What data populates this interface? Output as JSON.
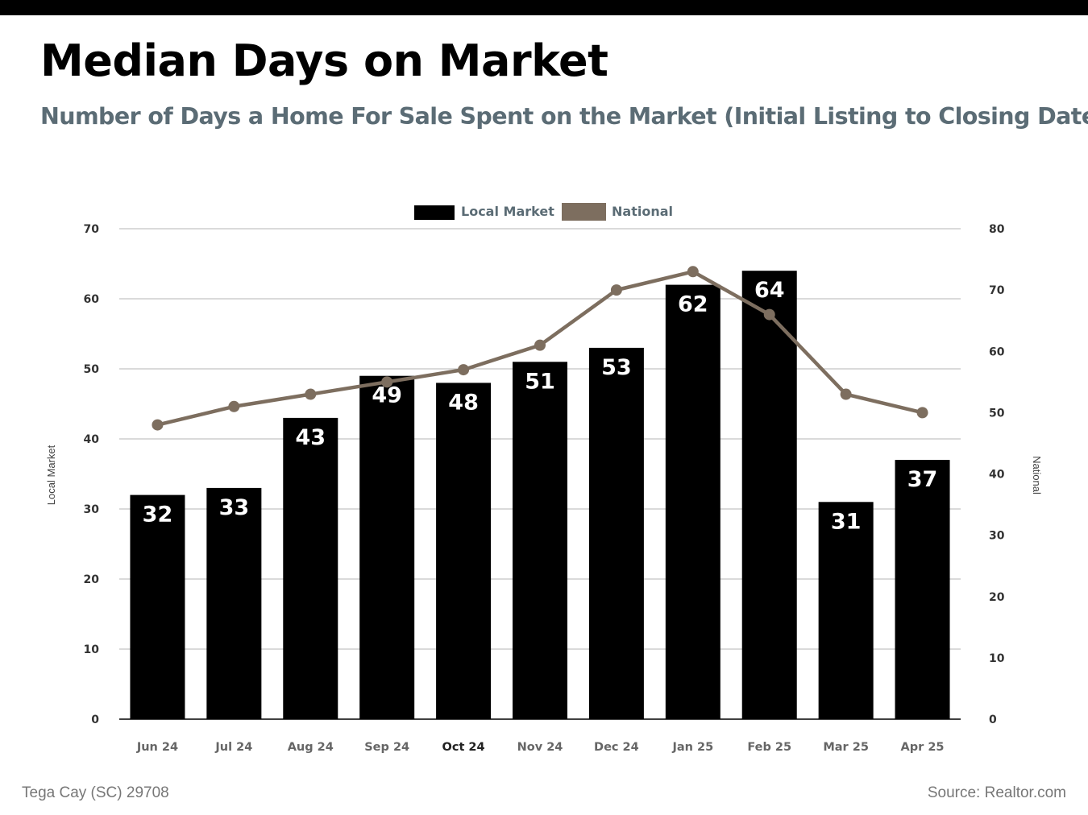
{
  "header": {
    "title": "Median Days on Market",
    "subtitle": "Number of Days a Home For Sale Spent on the Market (Initial Listing to Closing Date)"
  },
  "footer": {
    "location": "Tega Cay (SC) 29708",
    "source": "Source: Realtor.com"
  },
  "colors": {
    "local": "#000000",
    "national": "#7d6e5f",
    "grid": "#b5b5b5",
    "subtitle": "#5b6c75",
    "legend_text": "#5b6c75"
  },
  "chart_data": {
    "type": "bar",
    "categories": [
      "Jun 24",
      "Jul 24",
      "Aug 24",
      "Sep 24",
      "Oct 24",
      "Nov 24",
      "Dec 24",
      "Jan 25",
      "Feb 25",
      "Mar 25",
      "Apr 25"
    ],
    "series": [
      {
        "name": "Local Market",
        "type": "bar",
        "axis": "left",
        "values": [
          32,
          33,
          43,
          49,
          48,
          51,
          53,
          62,
          64,
          31,
          37
        ]
      },
      {
        "name": "National",
        "type": "line",
        "axis": "right",
        "values": [
          48,
          51,
          53,
          55,
          57,
          61,
          70,
          73,
          66,
          53,
          50
        ]
      }
    ],
    "ylabel": "Local Market",
    "y2label": "National",
    "ylim": [
      0,
      70
    ],
    "y2lim": [
      0,
      80
    ],
    "yticks": [
      0,
      10,
      20,
      30,
      40,
      50,
      60,
      70
    ],
    "y2ticks": [
      0,
      10,
      20,
      30,
      40,
      50,
      60,
      70,
      80
    ],
    "grid": true,
    "legend": "top-center"
  }
}
